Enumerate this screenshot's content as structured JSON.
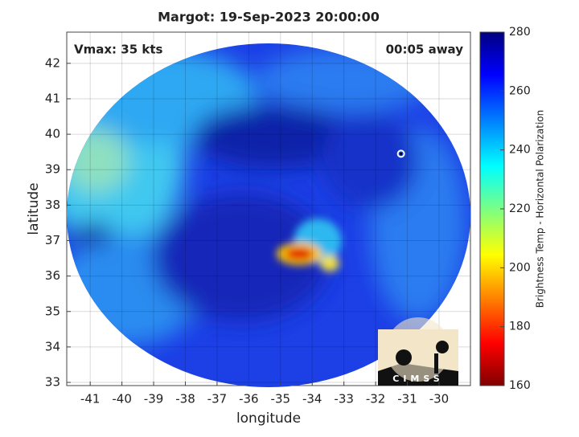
{
  "chart_data": {
    "type": "heatmap",
    "title": "Margot: 19-Sep-2023 20:00:00",
    "annotations": [
      "Vmax: 35 kts",
      "00:05 away"
    ],
    "x_label": "longitude",
    "y_label": "latitude",
    "xlim": [
      -41.74,
      -29.01
    ],
    "ylim": [
      32.91,
      42.88
    ],
    "xticks": [
      -41,
      -40,
      -39,
      -38,
      -37,
      -36,
      -35,
      -34,
      -33,
      -32,
      -31,
      -30
    ],
    "yticks": [
      33,
      34,
      35,
      36,
      37,
      38,
      39,
      40,
      41,
      42
    ],
    "grid": true,
    "storm_center": {
      "x": -31.2,
      "y": 39.45
    },
    "colorbar": {
      "label": "Brightness Temp - Horizontal Polarization",
      "lim": [
        160,
        280
      ],
      "ticks": [
        160,
        180,
        200,
        220,
        240,
        260,
        280
      ]
    },
    "logo": "CIMSS"
  }
}
